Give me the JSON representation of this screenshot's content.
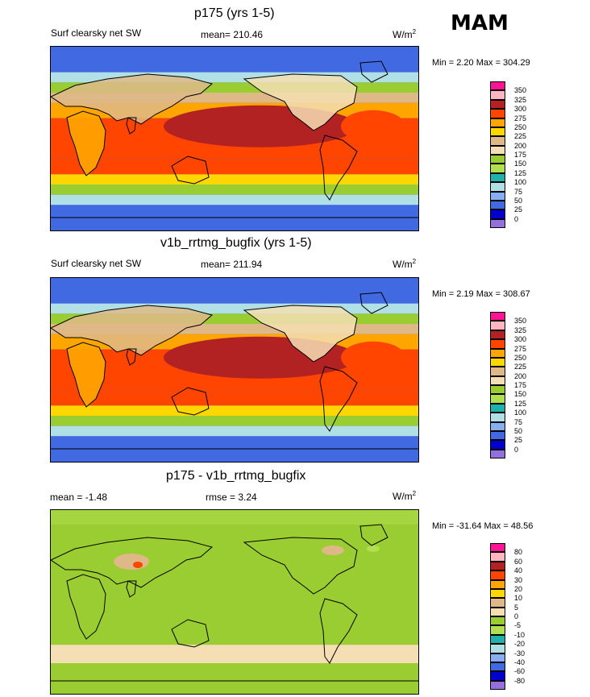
{
  "season": "MAM",
  "units_label": "W/m",
  "units_sup": "2",
  "panels": [
    {
      "title": "p175 (yrs 1-5)",
      "subtitle": "Surf clearsky net SW",
      "mean": "mean= 210.46",
      "rmse": "",
      "minmax": "Min =   2.20 Max = 304.29"
    },
    {
      "title": "v1b_rrtmg_bugfix (yrs 1-5)",
      "subtitle": "Surf clearsky net SW",
      "mean": "mean= 211.94",
      "rmse": "",
      "minmax": "Min =   2.19 Max = 308.67"
    },
    {
      "title": "p175 - v1b_rrtmg_bugfix",
      "subtitle": "",
      "mean": "mean =  -1.48",
      "rmse": "rmse =    3.24",
      "minmax": "Min = -31.64 Max =  48.56"
    }
  ],
  "colorbars": {
    "absolute": {
      "labels": [
        "350",
        "325",
        "300",
        "275",
        "250",
        "225",
        "200",
        "175",
        "150",
        "125",
        "100",
        "75",
        "50",
        "25",
        "0"
      ],
      "colors": [
        "#ff1493",
        "#ffb6c1",
        "#b22222",
        "#ff4500",
        "#ffa500",
        "#ffd700",
        "#deb887",
        "#f5deb3",
        "#9acd32",
        "#b0e050",
        "#20b2aa",
        "#b0e0e6",
        "#87aef0",
        "#4169e1",
        "#0000cd",
        "#9370db"
      ]
    },
    "difference": {
      "labels": [
        "80",
        "60",
        "40",
        "30",
        "20",
        "10",
        "5",
        "0",
        "-5",
        "-10",
        "-20",
        "-30",
        "-40",
        "-60",
        "-80"
      ],
      "colors": [
        "#ff1493",
        "#ffb6c1",
        "#b22222",
        "#ff4500",
        "#ffa500",
        "#ffd700",
        "#deb887",
        "#f5deb3",
        "#9acd32",
        "#b0e050",
        "#20b2aa",
        "#b0e0e6",
        "#87aef0",
        "#4169e1",
        "#0000cd",
        "#9370db"
      ]
    }
  },
  "chart_data": [
    {
      "type": "heatmap",
      "title": "p175 (yrs 1-5)",
      "variable": "Surf clearsky net SW",
      "units": "W/m2",
      "season": "MAM",
      "mean": 210.46,
      "min": 2.2,
      "max": 304.29,
      "contour_levels": [
        0,
        25,
        50,
        75,
        100,
        125,
        150,
        175,
        200,
        225,
        250,
        275,
        300,
        325,
        350
      ],
      "zonal_bands_lat": [
        80,
        65,
        55,
        45,
        35,
        20,
        0,
        -20,
        -35,
        -45,
        -55,
        -65,
        -80
      ],
      "zonal_values": [
        25,
        75,
        150,
        200,
        250,
        275,
        275,
        275,
        225,
        150,
        75,
        25,
        25
      ]
    },
    {
      "type": "heatmap",
      "title": "v1b_rrtmg_bugfix (yrs 1-5)",
      "variable": "Surf clearsky net SW",
      "units": "W/m2",
      "season": "MAM",
      "mean": 211.94,
      "min": 2.19,
      "max": 308.67,
      "contour_levels": [
        0,
        25,
        50,
        75,
        100,
        125,
        150,
        175,
        200,
        225,
        250,
        275,
        300,
        325,
        350
      ],
      "zonal_bands_lat": [
        80,
        65,
        55,
        45,
        35,
        20,
        0,
        -20,
        -35,
        -45,
        -55,
        -65,
        -80
      ],
      "zonal_values": [
        25,
        75,
        150,
        200,
        250,
        275,
        275,
        275,
        225,
        150,
        75,
        25,
        25
      ]
    },
    {
      "type": "heatmap",
      "title": "p175 - v1b_rrtmg_bugfix",
      "units": "W/m2",
      "mean": -1.48,
      "rmse": 3.24,
      "min": -31.64,
      "max": 48.56,
      "contour_levels": [
        -80,
        -60,
        -40,
        -30,
        -20,
        -10,
        -5,
        0,
        5,
        10,
        20,
        30,
        40,
        60,
        80
      ],
      "zonal_bands_lat": [
        60,
        30,
        0,
        -30,
        -45,
        -60
      ],
      "zonal_values": [
        -5,
        -5,
        -5,
        -5,
        0,
        -5
      ]
    }
  ]
}
